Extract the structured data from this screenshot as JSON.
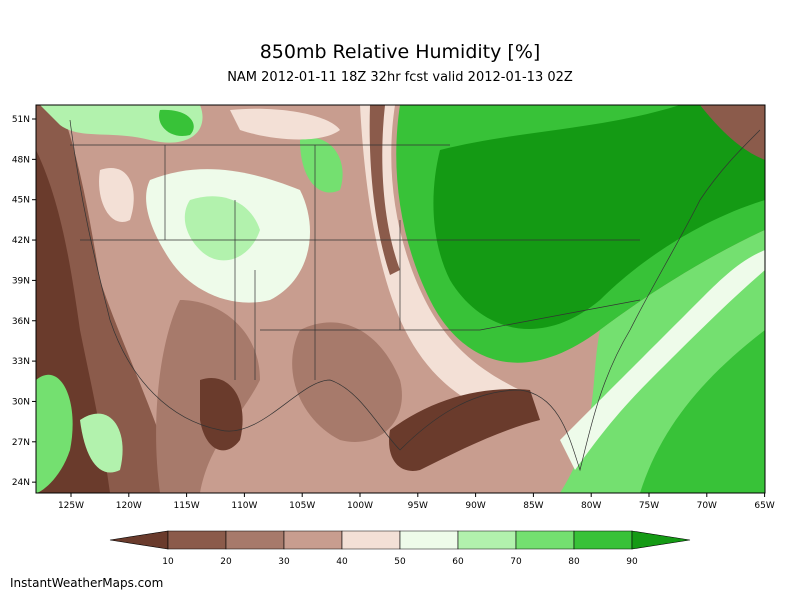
{
  "header": {
    "title": "850mb Relative Humidity [%]",
    "subtitle": "NAM 2012-01-11 18Z 32hr fcst valid 2012-01-13 02Z"
  },
  "lat_labels": [
    "51N",
    "48N",
    "45N",
    "42N",
    "39N",
    "36N",
    "33N",
    "30N",
    "27N",
    "24N"
  ],
  "lon_labels": [
    "125W",
    "120W",
    "115W",
    "110W",
    "105W",
    "100W",
    "95W",
    "90W",
    "85W",
    "80W",
    "75W",
    "70W",
    "65W"
  ],
  "colorbar": {
    "labels": [
      "10",
      "20",
      "30",
      "40",
      "50",
      "60",
      "70",
      "80",
      "90"
    ],
    "colors": [
      "#6a3b2c",
      "#8b5b4b",
      "#a77a6b",
      "#c89d8f",
      "#f3e0d6",
      "#eefbea",
      "#b2f2ad",
      "#74e070",
      "#38c238",
      "#149a14"
    ]
  },
  "footer": "InstantWeatherMaps.com"
}
